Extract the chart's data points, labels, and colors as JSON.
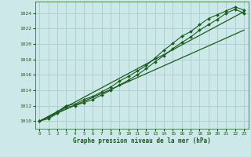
{
  "bg_color": "#cce8e8",
  "grid_color": "#aacccc",
  "line_color": "#1a5c1a",
  "xlabel": "Graphe pression niveau de la mer (hPa)",
  "xlim": [
    -0.5,
    23.5
  ],
  "ylim": [
    1009.0,
    1025.5
  ],
  "yticks": [
    1010,
    1012,
    1014,
    1016,
    1018,
    1020,
    1022,
    1024
  ],
  "xticks": [
    0,
    1,
    2,
    3,
    4,
    5,
    6,
    7,
    8,
    9,
    10,
    11,
    12,
    13,
    14,
    15,
    16,
    17,
    18,
    19,
    20,
    21,
    22,
    23
  ],
  "series1": [
    1010.0,
    1010.5,
    1011.2,
    1012.0,
    1012.2,
    1012.8,
    1013.2,
    1013.8,
    1014.4,
    1015.2,
    1015.8,
    1016.5,
    1017.2,
    1018.2,
    1019.2,
    1020.1,
    1021.0,
    1021.6,
    1022.5,
    1023.3,
    1023.8,
    1024.3,
    1024.8,
    1024.4
  ],
  "series2": [
    1010.0,
    1010.3,
    1011.0,
    1011.8,
    1012.0,
    1012.4,
    1012.8,
    1013.4,
    1014.0,
    1014.7,
    1015.3,
    1016.0,
    1016.8,
    1017.7,
    1018.5,
    1019.4,
    1020.2,
    1020.9,
    1021.8,
    1022.5,
    1023.2,
    1024.0,
    1024.5,
    1024.0
  ],
  "trend1_x": [
    0,
    23
  ],
  "trend1_y": [
    1010.0,
    1024.2
  ],
  "trend2_x": [
    0,
    23
  ],
  "trend2_y": [
    1010.0,
    1021.8
  ]
}
